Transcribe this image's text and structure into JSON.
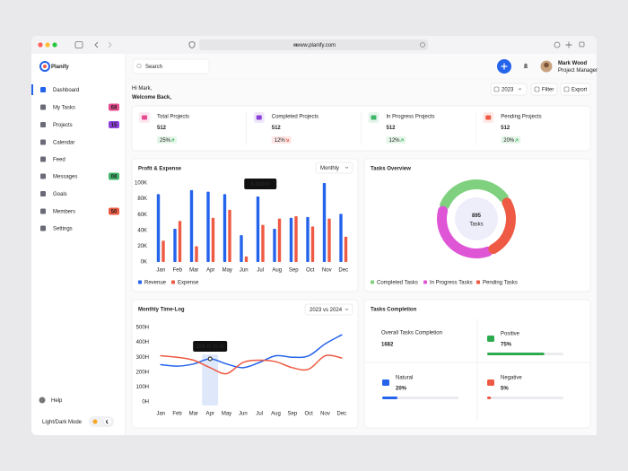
{
  "browser": {
    "url": "www.planify.com"
  },
  "sidebar": {
    "logo": "Planify",
    "nav": [
      {
        "label": "Dashboard",
        "active": true
      },
      {
        "label": "My Tasks",
        "badge": "68",
        "badge_color": "#e64a8f"
      },
      {
        "label": "Projects",
        "badge": "15",
        "badge_color": "#8b3fd9"
      },
      {
        "label": "Calendar"
      },
      {
        "label": "Feed"
      },
      {
        "label": "Messages",
        "badge": "08",
        "badge_color": "#3fb56a"
      },
      {
        "label": "Goals"
      },
      {
        "label": "Members",
        "badge": "50",
        "badge_color": "#ee5a43"
      },
      {
        "label": "Settings"
      }
    ],
    "help": "Help",
    "theme_toggle": "Light/Dark Mode"
  },
  "header": {
    "search_placeholder": "Search",
    "user": {
      "name": "Mark Wood",
      "role": "Project Manager"
    }
  },
  "greeting": {
    "line1": "Hi Mark,",
    "line2": "Welcome Back,"
  },
  "toolbar": {
    "year": "2023",
    "filter": "Filter",
    "export": "Export"
  },
  "stats": [
    {
      "label": "Total Projects",
      "value": 512,
      "change": "25%",
      "trend": "up",
      "color": "#e64a8f"
    },
    {
      "label": "Completed Projects",
      "value": 512,
      "change": "12%",
      "trend": "down",
      "color": "#8b3fd9"
    },
    {
      "label": "In Progress Projects",
      "value": 512,
      "change": "12%",
      "trend": "up",
      "color": "#3fb56a"
    },
    {
      "label": "Pending Projects",
      "value": 512,
      "change": "20%",
      "trend": "up",
      "color": "#ee5a43"
    }
  ],
  "chart_data": [
    {
      "type": "bar",
      "title": "Profit & Expense",
      "period": "Monthly",
      "categories": [
        "Jan",
        "Feb",
        "Mar",
        "Apr",
        "May",
        "Jun",
        "Jul",
        "Aug",
        "Sep",
        "Oct",
        "Nov",
        "Dec"
      ],
      "series": [
        {
          "name": "Revenue",
          "color": "#2463eb",
          "values": [
            86000,
            42000,
            91000,
            89000,
            86000,
            34000,
            83000,
            42000,
            56000,
            57000,
            100000,
            61000
          ]
        },
        {
          "name": "Expense",
          "color": "#ee5a43",
          "values": [
            27000,
            52000,
            20000,
            56000,
            66000,
            7000,
            47000,
            55000,
            58000,
            45000,
            55000,
            32000
          ]
        }
      ],
      "ylim": [
        0,
        100000
      ],
      "yticks": [
        {
          "value": 0,
          "label": "0K"
        },
        {
          "value": 20000,
          "label": "20K"
        },
        {
          "value": 40000,
          "label": "40K"
        },
        {
          "value": 60000,
          "label": "60K"
        },
        {
          "value": 80000,
          "label": "80K"
        },
        {
          "value": 100000,
          "label": "100K"
        }
      ],
      "grid": false,
      "annotation": "$ 83000"
    },
    {
      "type": "pie",
      "title": "Tasks Overview",
      "center_value": 895,
      "center_label": "Tasks",
      "categories": [
        "Completed Tasks",
        "In Progress Tasks",
        "Pending Tasks"
      ],
      "values": [
        320,
        330,
        245
      ],
      "colors": [
        "#7fd07f",
        "#de55d6",
        "#ee5a43"
      ]
    },
    {
      "type": "line",
      "title": "Monthly Time-Log",
      "period": "2023 vs 2024",
      "categories": [
        "Jan",
        "Feb",
        "Mar",
        "Apr",
        "May",
        "Jun",
        "Jul",
        "Aug",
        "Sep",
        "Oct",
        "Nov",
        "Dec"
      ],
      "series": [
        {
          "color": "#2463eb",
          "values": [
            250,
            240,
            255,
            289.25,
            255,
            230,
            265,
            310,
            300,
            310,
            390,
            450
          ]
        },
        {
          "color": "#ee5a43",
          "values": [
            310,
            300,
            280,
            230,
            190,
            265,
            280,
            270,
            230,
            220,
            310,
            295
          ]
        }
      ],
      "ylim": [
        0,
        500
      ],
      "yticks": [
        {
          "value": 0,
          "label": "0H"
        },
        {
          "value": 100,
          "label": "100H"
        },
        {
          "value": 200,
          "label": "200H"
        },
        {
          "value": 300,
          "label": "300H"
        },
        {
          "value": 400,
          "label": "400H"
        },
        {
          "value": 500,
          "label": "500H"
        }
      ],
      "grid": false,
      "annotation": "289 H 15 M"
    }
  ],
  "tasks_completion": {
    "title": "Tasks Completion",
    "overall": {
      "label": "Overall Tasks Completion",
      "value": 1682
    },
    "items": [
      {
        "label": "Positive",
        "value": 75,
        "value_label": "75%",
        "color": "#2eaa4e"
      },
      {
        "label": "Natural",
        "value": 20,
        "value_label": "20%",
        "color": "#2463eb"
      },
      {
        "label": "Negative",
        "value": 5,
        "value_label": "5%",
        "color": "#ee5a43"
      }
    ]
  }
}
